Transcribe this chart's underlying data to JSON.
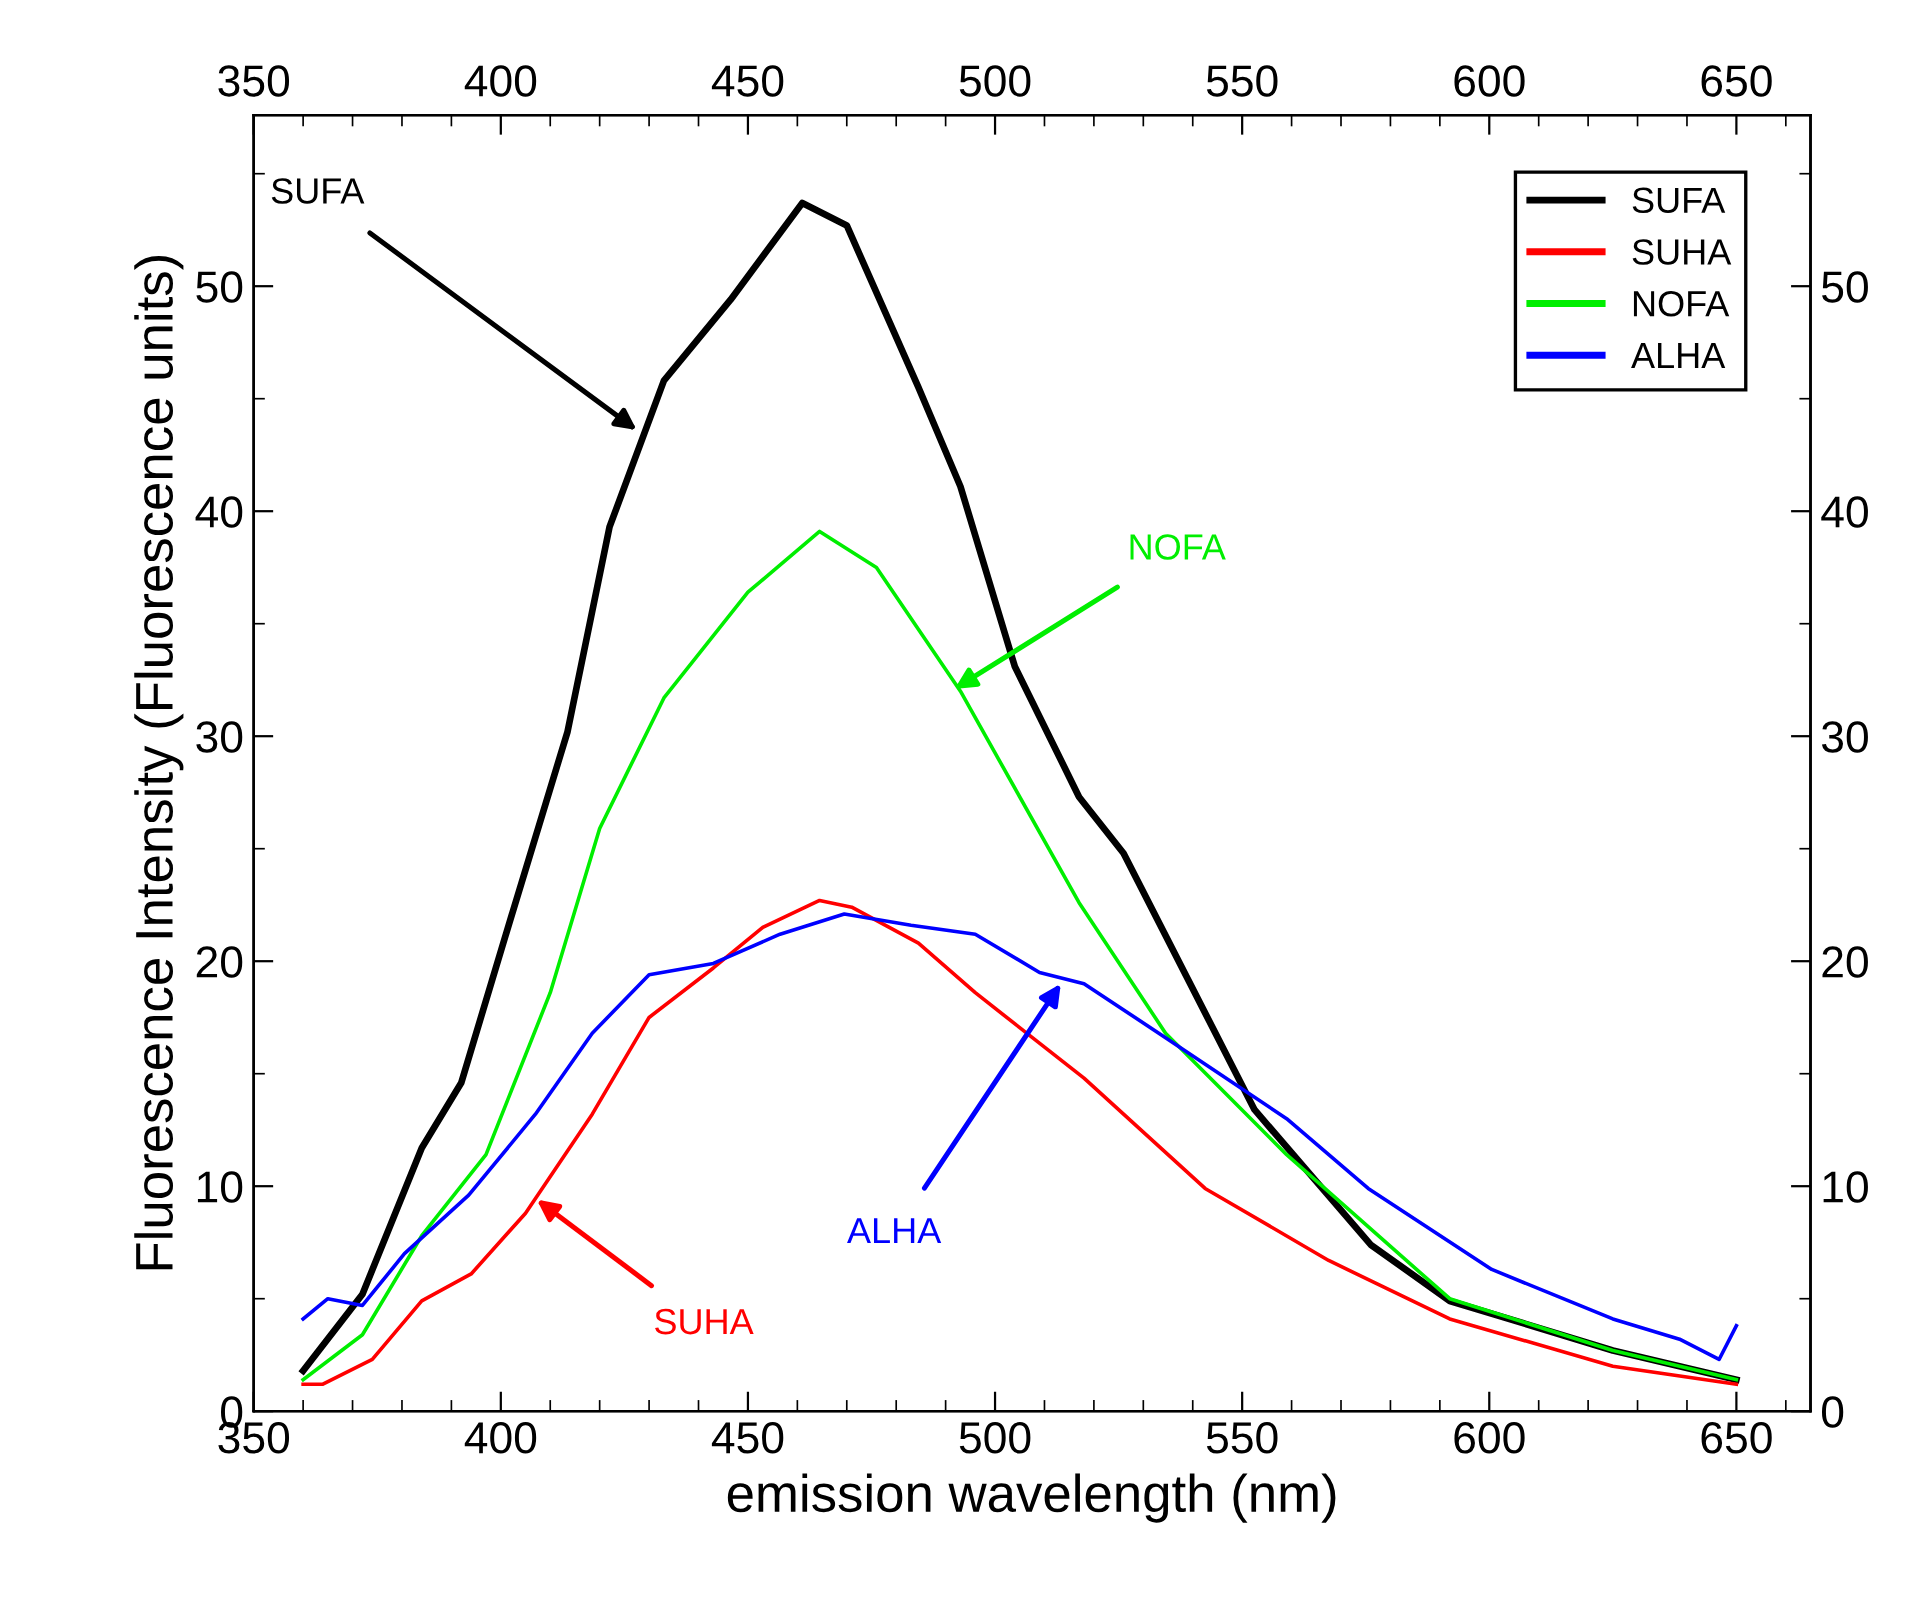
{
  "chart_data": {
    "type": "line",
    "xlabel": "emission wavelength (nm)",
    "ylabel": "Fluorescence Intensity (Fluorescence units)",
    "xlim": [
      350,
      665
    ],
    "xticks": [
      350,
      400,
      450,
      500,
      550,
      600,
      650
    ],
    "x2lim": [
      350,
      665
    ],
    "x2ticks": [
      350,
      400,
      450,
      500,
      550,
      600,
      650
    ],
    "ylim": [
      0,
      57.6
    ],
    "yticks": [
      0,
      10,
      20,
      30,
      40,
      50
    ],
    "y2lim": [
      0,
      57.6
    ],
    "y2ticks": [
      0,
      10,
      20,
      30,
      40,
      50
    ],
    "grid": false,
    "legend": "top right",
    "line_style": "solid",
    "marker": "none",
    "series": [
      {
        "name": "SUFA",
        "color": "#000000",
        "x": [
          360,
          372,
          384,
          392,
          402,
          413.5,
          422,
          433,
          446.5,
          461,
          470,
          484.5,
          493,
          504,
          517,
          526,
          552.5,
          576,
          592,
          625,
          650
        ],
        "values": [
          1.8,
          5.2,
          11.7,
          14.6,
          21.9,
          30.2,
          39.3,
          45.8,
          49.4,
          53.7,
          52.7,
          45.5,
          41.1,
          33.1,
          27.3,
          24.8,
          13.4,
          7.4,
          4.9,
          2.7,
          1.4
        ]
      },
      {
        "name": "SUHA",
        "color": "#ff0000",
        "x": [
          360,
          364,
          374,
          384,
          394,
          405,
          418.5,
          430,
          443,
          453,
          464.5,
          471,
          484.5,
          496,
          518,
          542.5,
          567.5,
          592,
          625,
          650
        ],
        "values": [
          1.2,
          1.2,
          2.3,
          4.9,
          6.1,
          8.8,
          13.2,
          17.5,
          19.7,
          21.5,
          22.7,
          22.4,
          20.8,
          18.6,
          14.8,
          9.9,
          6.7,
          4.1,
          2.0,
          1.2
        ]
      },
      {
        "name": "NOFA",
        "color": "#00ee00",
        "x": [
          360,
          372,
          384,
          397,
          410,
          420,
          433,
          450,
          464.5,
          476,
          493,
          517,
          534.5,
          559,
          592,
          625,
          650
        ],
        "values": [
          1.4,
          3.4,
          7.8,
          11.4,
          18.6,
          25.9,
          31.7,
          36.4,
          39.1,
          37.5,
          32.0,
          22.6,
          16.8,
          11.4,
          5.0,
          2.7,
          1.4
        ]
      },
      {
        "name": "ALHA",
        "color": "#0000ff",
        "x": [
          360,
          365,
          372,
          380.5,
          393.5,
          407,
          418.5,
          430,
          443,
          456.5,
          469.5,
          483,
          496,
          509,
          518,
          534.5,
          559,
          575.5,
          600.5,
          625,
          638.5,
          646.5,
          650
        ],
        "values": [
          4.1,
          5.0,
          4.7,
          7.0,
          9.6,
          13.2,
          16.8,
          19.4,
          19.9,
          21.2,
          22.1,
          21.6,
          21.2,
          19.5,
          19.0,
          16.6,
          13.0,
          9.9,
          6.3,
          4.1,
          3.2,
          2.3,
          3.8
        ]
      }
    ],
    "annotations": [
      {
        "text": "SUFA",
        "x": 427.5,
        "y": 43.6
      },
      {
        "text": "NOFA",
        "x": 491.8,
        "y": 32.1
      },
      {
        "text": "ALHA",
        "x": 513.3,
        "y": 19.0
      },
      {
        "text": "SUHA",
        "x": 407.3,
        "y": 9.4
      }
    ]
  }
}
